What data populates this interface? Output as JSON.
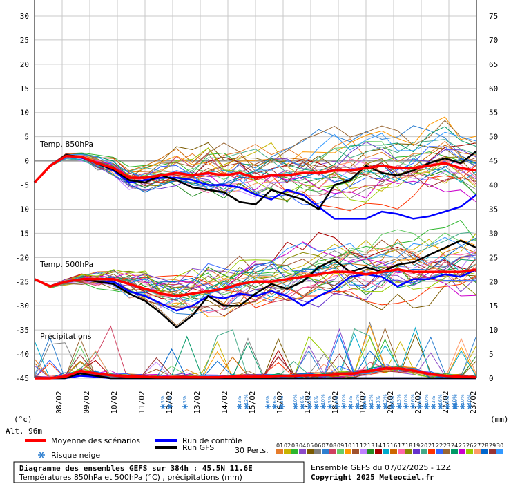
{
  "chart_data": {
    "type": "line",
    "left_axis": {
      "unit_label": "(°c)",
      "ticks": [
        "30",
        "25",
        "20",
        "15",
        "10",
        "5",
        "0",
        "-5",
        "-10",
        "-15",
        "-20",
        "-25",
        "-30",
        "-35",
        "-40",
        "-45"
      ],
      "ylim": [
        -45,
        30
      ]
    },
    "right_axis": {
      "unit_label": "(mm)",
      "ticks": [
        "75",
        "70",
        "65",
        "60",
        "55",
        "50",
        "45",
        "40",
        "35",
        "30",
        "25",
        "20",
        "15",
        "10",
        "5",
        "0"
      ],
      "ylim": [
        0,
        75
      ]
    },
    "x_ticks": [
      "08/02",
      "09/02",
      "10/02",
      "11/02",
      "12/02",
      "13/02",
      "14/02",
      "15/02",
      "16/02",
      "17/02",
      "18/02",
      "19/02",
      "20/02",
      "21/02",
      "22/02",
      "23/02"
    ],
    "grid": true,
    "altitude": "Alt. 96m",
    "panel_labels": {
      "t850": "Temp. 850hPa",
      "t500": "Temp. 500hPa",
      "precip": "Précipitations"
    },
    "series_t850": {
      "mean": [
        -4.5,
        -1,
        1,
        0.8,
        -0.5,
        -1.5,
        -3.5,
        -3.5,
        -3,
        -2.5,
        -3,
        -2.5,
        -3,
        -2.5,
        -3.5,
        -3,
        -3,
        -2.5,
        -2.5,
        -2,
        -2,
        -1.5,
        -1,
        -1.5,
        -1.5,
        -1,
        -0.5,
        -1.5,
        -2
      ],
      "control": [
        -4.5,
        -1,
        1,
        0.6,
        -0.5,
        -2,
        -4.5,
        -4,
        -3.5,
        -3.5,
        -4,
        -5,
        -5,
        -5.5,
        -7,
        -8,
        -6,
        -7,
        -9.5,
        -12,
        -12,
        -12,
        -10.5,
        -11,
        -12,
        -11.5,
        -10.5,
        -9.5,
        -7
      ],
      "gfs": [
        -4.5,
        -1,
        1.2,
        0.8,
        -0.6,
        -1.8,
        -4,
        -4.5,
        -3,
        -4,
        -5.5,
        -6,
        -6.5,
        -8.5,
        -9,
        -6,
        -7,
        -8,
        -10,
        -5,
        -4,
        -1,
        -2.5,
        -3,
        -2,
        -0.5,
        0.5,
        -0.5,
        2
      ]
    },
    "series_t500": {
      "mean": [
        -24.5,
        -26,
        -25,
        -24.5,
        -24.5,
        -24.5,
        -25.5,
        -26.5,
        -27.5,
        -28,
        -27.5,
        -27,
        -26.5,
        -25.5,
        -25,
        -25,
        -24.5,
        -24,
        -23.5,
        -23,
        -23,
        -23.5,
        -23,
        -22.5,
        -23,
        -23,
        -23,
        -23,
        -22.5
      ],
      "control": [
        -24.5,
        -26,
        -25,
        -24.5,
        -25,
        -25,
        -27,
        -28,
        -29.5,
        -31,
        -30,
        -28,
        -28.5,
        -27.5,
        -28,
        -27,
        -28,
        -30,
        -28,
        -26.5,
        -24,
        -23.5,
        -24,
        -26,
        -24.5,
        -24.5,
        -23.5,
        -24,
        -22.5
      ],
      "gfs": [
        -24.5,
        -26,
        -25,
        -24.5,
        -25,
        -25.5,
        -27.5,
        -29,
        -31.5,
        -34.5,
        -32,
        -28,
        -30,
        -30,
        -27.5,
        -25.5,
        -26.5,
        -25,
        -22,
        -20.5,
        -23,
        -22,
        -23,
        -21.5,
        -21,
        -19.5,
        -18,
        -16.5,
        -18
      ]
    },
    "series_precip": {
      "mean": [
        0,
        0,
        0.3,
        1.5,
        1,
        0.6,
        0.4,
        0.3,
        0.2,
        0.2,
        0.2,
        0.2,
        0.2,
        0.3,
        0.3,
        0.3,
        0.5,
        0.5,
        0.6,
        0.6,
        0.8,
        1,
        1.5,
        2,
        2,
        1.5,
        0.8,
        0.5,
        0.3,
        0.2
      ],
      "control": [
        0,
        0,
        0,
        0.5,
        0.3,
        0,
        0,
        0,
        0,
        0,
        0,
        0,
        0,
        0,
        0,
        0,
        0,
        0,
        0,
        0,
        0,
        0,
        0,
        0,
        0,
        0,
        0,
        0,
        0,
        0
      ],
      "gfs": [
        0,
        0,
        0,
        1,
        0.5,
        0,
        0,
        0,
        0,
        0,
        0,
        0,
        0,
        0,
        0,
        0,
        0,
        0,
        0,
        0,
        0,
        0,
        0,
        0,
        0,
        0,
        0,
        0,
        0,
        0
      ]
    },
    "snow_risk": [
      {
        "x": 12.0,
        "pcts": [
          "3%",
          "3%"
        ]
      },
      {
        "x": 12.7,
        "pcts": [
          "3%"
        ]
      },
      {
        "x": 14.9,
        "pcts": [
          "3%",
          "13%"
        ]
      },
      {
        "x": 15.85,
        "pcts": [
          "6%",
          "6%",
          "3%"
        ]
      },
      {
        "x": 16.8,
        "pcts": [
          "10%",
          "6%",
          "3%",
          "6%",
          "10%",
          "3%",
          "6%",
          "10%",
          "3%",
          "13%",
          "6%",
          "13%",
          "3%",
          "13%",
          "6%",
          "13%",
          "10%",
          "16%",
          "6%",
          "10%",
          "3%",
          "16%",
          "6%",
          "10%"
        ]
      },
      {
        "x": 22.6,
        "pcts": [
          "10%",
          "10%",
          "10%"
        ]
      }
    ]
  },
  "legend": {
    "mean": "Moyenne des scénarios",
    "control": "Run de contrôle",
    "gfs": "Run GFS",
    "snow": "Risque neige",
    "perts": "30 Perts.",
    "pert_numbers": [
      "01",
      "02",
      "03",
      "04",
      "05",
      "06",
      "07",
      "08",
      "09",
      "10",
      "11",
      "12",
      "13",
      "14",
      "15",
      "16",
      "17",
      "18",
      "19",
      "20",
      "21",
      "22",
      "23",
      "24",
      "25",
      "26",
      "27",
      "28",
      "29",
      "30"
    ],
    "pert_colors": [
      "#e67c2b",
      "#c8b400",
      "#2db62d",
      "#8c4bc8",
      "#7a5a00",
      "#808080",
      "#2d7fd0",
      "#d04060",
      "#66cc66",
      "#ff9900",
      "#a0522d",
      "#c080ff",
      "#228b22",
      "#aa0000",
      "#00aacc",
      "#cc6600",
      "#ff66aa",
      "#888800",
      "#6633cc",
      "#44aa88",
      "#ff3300",
      "#3366ff",
      "#996633",
      "#009966",
      "#cc00cc",
      "#99cc00",
      "#ff9966",
      "#0066cc",
      "#993333",
      "#3399ff"
    ],
    "colors": {
      "mean": "#ff0000",
      "control": "#0000ff",
      "gfs": "#000000"
    }
  },
  "footer": {
    "title": "Diagramme des ensembles GEFS sur 384h : 45.5N 11.6E",
    "subtitle": "Températures 850hPa et 500hPa (°C) , précipitations (mm)",
    "ensemble": "Ensemble GEFS du 07/02/2025 - 12Z",
    "copyright": "Copyright 2025 Meteociel.fr"
  }
}
